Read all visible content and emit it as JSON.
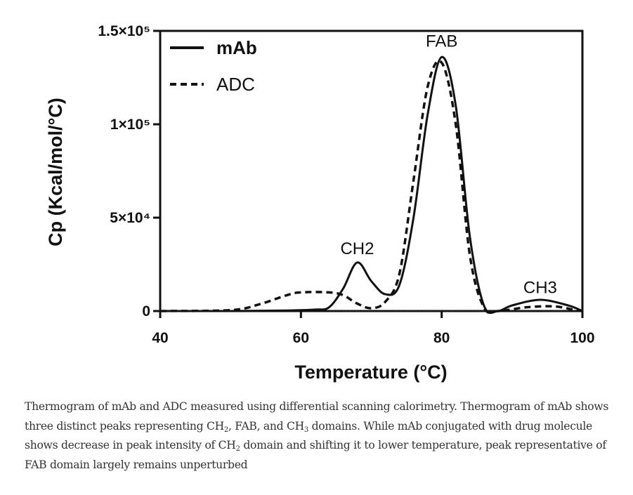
{
  "chart_data": {
    "type": "line",
    "title": "",
    "xlabel": "Temperature (°C)",
    "ylabel": "Cp (Kcal/mol/°C)",
    "xlim": [
      40,
      100
    ],
    "ylim": [
      0,
      150000
    ],
    "x_ticks": [
      {
        "value": 40,
        "label": "40"
      },
      {
        "value": 60,
        "label": "60"
      },
      {
        "value": 80,
        "label": "80"
      },
      {
        "value": 100,
        "label": "100"
      }
    ],
    "y_ticks": [
      {
        "value": 0,
        "label": "0"
      },
      {
        "value": 50000,
        "label": "5×10⁴"
      },
      {
        "value": 100000,
        "label": "1×10⁵"
      },
      {
        "value": 150000,
        "label": "1.5×10⁵"
      }
    ],
    "legend_position": "top-left",
    "series": [
      {
        "name": "mAb",
        "style": "solid",
        "x": [
          40,
          50,
          58,
          62,
          64,
          66,
          68,
          70,
          72,
          74,
          76,
          78,
          80,
          82,
          84,
          86,
          88,
          90,
          94,
          98,
          100
        ],
        "y": [
          0,
          0,
          300,
          800,
          2000,
          12000,
          26000,
          16000,
          9000,
          14000,
          50000,
          105000,
          136000,
          110000,
          40000,
          3000,
          0,
          3000,
          6000,
          3000,
          0
        ]
      },
      {
        "name": "ADC",
        "style": "dashed",
        "x": [
          40,
          50,
          54,
          58,
          60,
          64,
          66,
          68,
          70,
          72,
          74,
          76,
          78,
          80,
          82,
          84,
          86,
          88,
          92,
          96,
          99,
          100
        ],
        "y": [
          0,
          500,
          3500,
          8500,
          10000,
          10000,
          8500,
          4000,
          1500,
          5000,
          20000,
          70000,
          120000,
          133000,
          100000,
          30000,
          2000,
          0,
          2000,
          2500,
          500,
          0
        ]
      }
    ],
    "annotations": [
      {
        "text": "CH2",
        "x": 68,
        "y": 29000
      },
      {
        "text": "FAB",
        "x": 80,
        "y": 140000
      },
      {
        "text": "CH3",
        "x": 94,
        "y": 8000
      }
    ]
  },
  "caption": {
    "p1": "Thermogram of mAb and ADC measured using differential scanning calorimetry. Thermogram of mAb shows three distinct peaks representing CH",
    "s1": "2",
    "p2": ", FAB, and CH",
    "s2": "3",
    "p3": " domains. While mAb conjugated with drug molecule shows decrease in peak intensity of CH",
    "s3": "2",
    "p4": " domain and shifting it to lower temperature, peak representative of FAB domain largely remains unperturbed"
  }
}
